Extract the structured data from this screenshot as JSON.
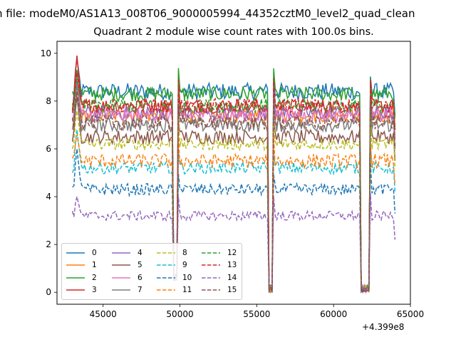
{
  "window": {
    "suptitle": "n file: modeM0/AS1A13_008T06_9000005994_44352cztM0_level2_quad_clean",
    "offset_text": "+4.399e8"
  },
  "chart_data": {
    "type": "line",
    "title": "Quadrant 2 module wise count rates with 100.0s bins.",
    "xlabel": "",
    "ylabel": "",
    "x_offset": 439900000,
    "xlim": [
      42000,
      65000
    ],
    "ylim": [
      -0.5,
      10.5
    ],
    "xticks": [
      45000,
      50000,
      55000,
      60000,
      65000
    ],
    "xtick_labels": [
      "45000",
      "50000",
      "55000",
      "60000",
      "65000"
    ],
    "yticks": [
      0,
      2,
      4,
      6,
      8,
      10
    ],
    "ytick_labels": [
      "0",
      "2",
      "4",
      "6",
      "8",
      "10"
    ],
    "grid": false,
    "legend_position": "lower-left",
    "gaps": [
      {
        "start": 49600,
        "end": 49900,
        "value": 0.5
      },
      {
        "start": 55800,
        "end": 56100,
        "value": 0
      },
      {
        "start": 61800,
        "end": 62400,
        "value": 0
      }
    ],
    "x_start": 43000,
    "x_end": 64000,
    "x_step": 100,
    "series": [
      {
        "name": "0",
        "style": "solid",
        "color": "#1f77b4",
        "level": 8.4,
        "first": 7.6,
        "peak": 9.8,
        "noise": 0.35
      },
      {
        "name": "1",
        "style": "solid",
        "color": "#ff7f0e",
        "level": 7.4,
        "first": 7.2,
        "peak": 9.0,
        "noise": 0.3
      },
      {
        "name": "2",
        "style": "solid",
        "color": "#2ca02c",
        "level": 8.3,
        "first": 8.4,
        "peak": 9.3,
        "noise": 0.3
      },
      {
        "name": "3",
        "style": "solid",
        "color": "#d62728",
        "level": 7.8,
        "first": 7.5,
        "peak": 9.9,
        "noise": 0.3
      },
      {
        "name": "4",
        "style": "solid",
        "color": "#9467bd",
        "level": 7.5,
        "first": 7.5,
        "peak": 8.6,
        "noise": 0.3
      },
      {
        "name": "5",
        "style": "solid",
        "color": "#8c564b",
        "level": 6.5,
        "first": 6.3,
        "peak": 8.2,
        "noise": 0.3
      },
      {
        "name": "6",
        "style": "solid",
        "color": "#e377c2",
        "level": 7.4,
        "first": 7.2,
        "peak": 8.9,
        "noise": 0.3
      },
      {
        "name": "7",
        "style": "solid",
        "color": "#7f7f7f",
        "level": 7.0,
        "first": 6.8,
        "peak": 8.8,
        "noise": 0.3
      },
      {
        "name": "8",
        "style": "dashed",
        "color": "#bcbd22",
        "level": 6.2,
        "first": 6.0,
        "peak": 7.6,
        "noise": 0.25
      },
      {
        "name": "9",
        "style": "dashed",
        "color": "#17becf",
        "level": 5.2,
        "first": 5.0,
        "peak": 6.8,
        "noise": 0.25
      },
      {
        "name": "10",
        "style": "dashed",
        "color": "#1f77b4",
        "level": 4.3,
        "first": 4.4,
        "peak": 6.0,
        "noise": 0.25
      },
      {
        "name": "11",
        "style": "dashed",
        "color": "#ff7f0e",
        "level": 5.5,
        "first": 5.6,
        "peak": 6.6,
        "noise": 0.3
      },
      {
        "name": "12",
        "style": "dashed",
        "color": "#2ca02c",
        "level": 7.8,
        "first": 7.9,
        "peak": 9.0,
        "noise": 0.3
      },
      {
        "name": "13",
        "style": "dashed",
        "color": "#d62728",
        "level": 7.8,
        "first": 7.6,
        "peak": 9.2,
        "noise": 0.3
      },
      {
        "name": "14",
        "style": "dashed",
        "color": "#9467bd",
        "level": 3.2,
        "first": 3.4,
        "peak": 4.0,
        "noise": 0.2
      },
      {
        "name": "15",
        "style": "dashed",
        "color": "#8c564b",
        "level": 7.1,
        "first": 7.3,
        "peak": 8.4,
        "noise": 0.3
      }
    ]
  }
}
